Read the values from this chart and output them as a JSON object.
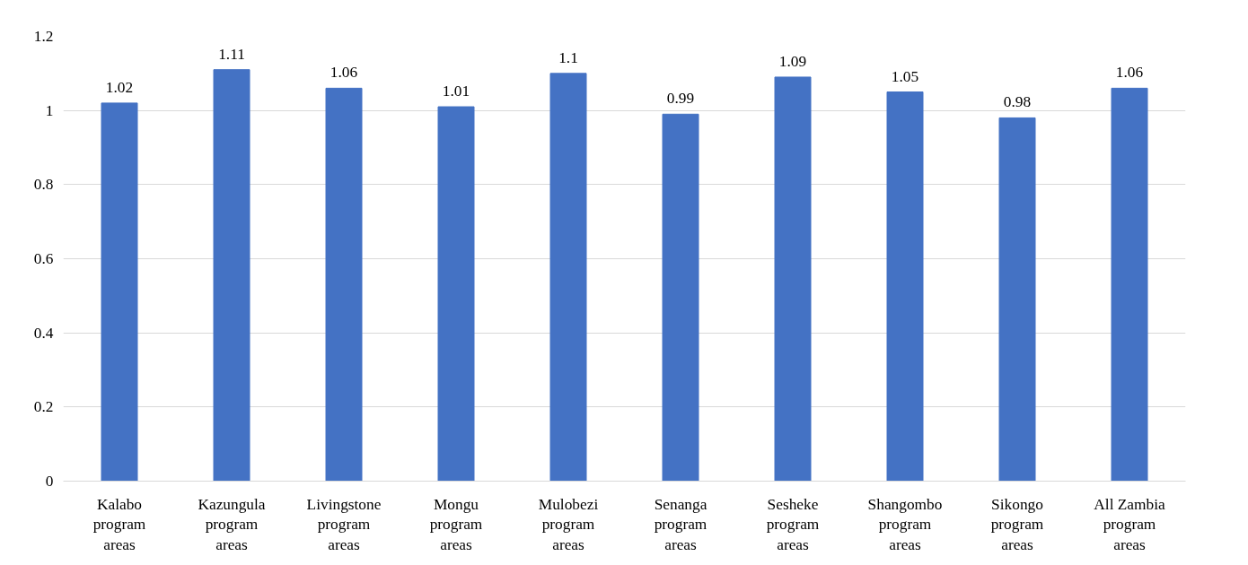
{
  "chart_data": {
    "type": "bar",
    "categories": [
      "Kalabo program areas",
      "Kazungula program areas",
      "Livingstone program areas",
      "Mongu program areas",
      "Mulobezi program areas",
      "Senanga program areas",
      "Sesheke program areas",
      "Shangombo program areas",
      "Sikongo program areas",
      "All Zambia program areas"
    ],
    "values": [
      1.02,
      1.11,
      1.06,
      1.01,
      1.1,
      0.99,
      1.09,
      1.05,
      0.98,
      1.06
    ],
    "color": "#4472c4",
    "ylim": [
      0,
      1.2
    ],
    "yticks": [
      0,
      0.2,
      0.4,
      0.6,
      0.8,
      1,
      1.2
    ],
    "grid": "y",
    "data_labels": true
  }
}
